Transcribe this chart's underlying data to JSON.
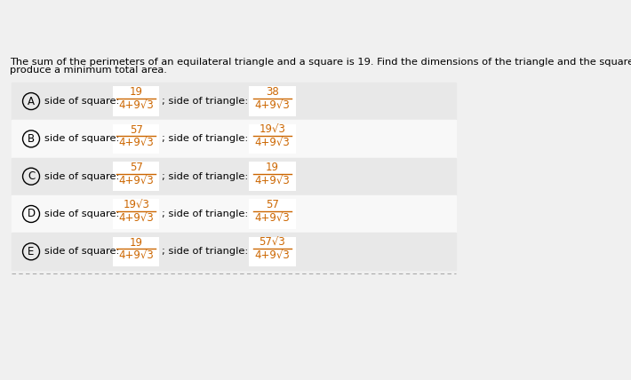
{
  "title_line1": "The sum of the perimeters of an equilateral triangle and a square is 19. Find the dimensions of the triangle and the square that",
  "title_line2": "produce a minimum total area.",
  "bg_color": "#f0f0f0",
  "row_bg_even": "#e8e8e8",
  "row_bg_odd": "#f8f8f8",
  "white_color": "#ffffff",
  "text_color": "#000000",
  "orange_color": "#cc6600",
  "dashed_line_color": "#aaaaaa",
  "options": [
    {
      "label": "A",
      "sq_num": "19",
      "sq_den": "4+9√3",
      "tri_num": "38",
      "tri_den": "4+9√3"
    },
    {
      "label": "B",
      "sq_num": "57",
      "sq_den": "4+9√3",
      "tri_num": "19√3",
      "tri_den": "4+9√3"
    },
    {
      "label": "C",
      "sq_num": "57",
      "sq_den": "4+9√3",
      "tri_num": "19",
      "tri_den": "4+9√3"
    },
    {
      "label": "D",
      "sq_num": "19√3",
      "sq_den": "4+9√3",
      "tri_num": "57",
      "tri_den": "4+9√3"
    },
    {
      "label": "E",
      "sq_num": "19",
      "sq_den": "4+9√3",
      "tri_num": "57√3",
      "tri_den": "4+9√3"
    }
  ],
  "font_size_title": 8.2,
  "font_size_label": 8.5,
  "font_size_text": 8.2,
  "font_size_num": 8.5,
  "font_size_den": 8.5
}
